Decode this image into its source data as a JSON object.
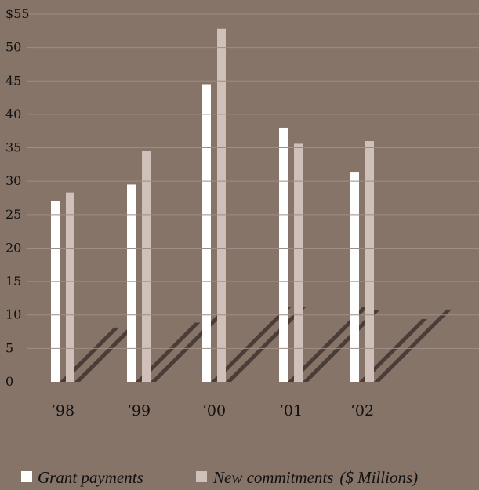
{
  "chart_data": {
    "type": "bar",
    "categories": [
      "’98",
      "’99",
      "’00",
      "’01",
      "’02"
    ],
    "series": [
      {
        "name": "Grant payments",
        "values": [
          27,
          29.5,
          44.5,
          38,
          31.3
        ]
      },
      {
        "name": "New commitments",
        "values": [
          28.3,
          34.5,
          52.8,
          35.6,
          36
        ]
      }
    ],
    "units_label": "($ Millions)",
    "y_ticks": [
      "$55",
      "50",
      "45",
      "40",
      "35",
      "30",
      "25",
      "20",
      "15",
      "10",
      "5",
      "0"
    ],
    "ylim": [
      0,
      55
    ],
    "title": "",
    "xlabel": "",
    "ylabel": "",
    "grid": true,
    "legend_position": "bottom-left"
  },
  "colors": {
    "background": "#877469",
    "series_1": "#ffffff",
    "series_2": "#cfc1ba",
    "gridline": "#9e8d84",
    "shadow": "#4a3d38",
    "text": "#111111"
  }
}
